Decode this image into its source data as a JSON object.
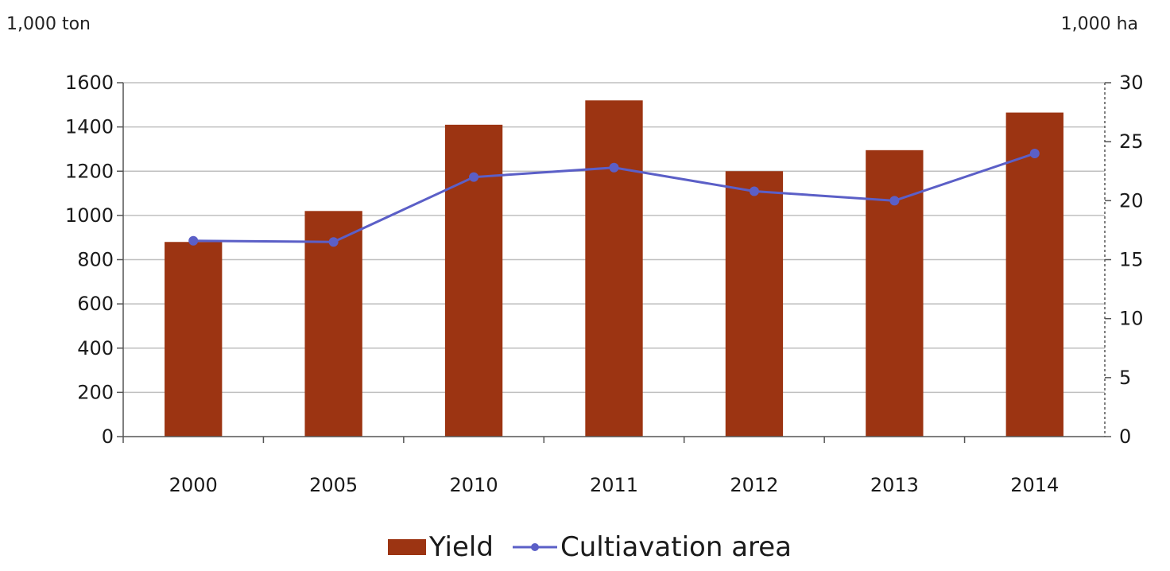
{
  "units": {
    "left": "1,000 ton",
    "right": "1,000 ha"
  },
  "colors": {
    "bar": "#9c3412",
    "line": "#5b5fc7",
    "grid": "#bfbfbf",
    "axis": "#555555"
  },
  "chart_data": {
    "type": "bar",
    "categories": [
      "2000",
      "2005",
      "2010",
      "2011",
      "2012",
      "2013",
      "2014"
    ],
    "series": [
      {
        "name": "Yield",
        "type": "bar",
        "axis": "left",
        "values": [
          880,
          1020,
          1410,
          1520,
          1200,
          1295,
          1465
        ]
      },
      {
        "name": "Cultiavation area",
        "type": "line",
        "axis": "right",
        "values": [
          16.6,
          16.5,
          22.0,
          22.8,
          20.8,
          20.0,
          24.0
        ]
      }
    ],
    "y_left": {
      "range": [
        0,
        1600
      ],
      "ticks": [
        "0",
        "200",
        "400",
        "600",
        "800",
        "1000",
        "1200",
        "1400",
        "1600"
      ]
    },
    "y_right": {
      "range": [
        0,
        30
      ],
      "ticks": [
        "0",
        "5",
        "10",
        "15",
        "20",
        "25",
        "30"
      ]
    },
    "grid": true,
    "legend": "bottom"
  },
  "legend": {
    "yield_label": "Yield",
    "area_label": "Cultiavation area"
  }
}
